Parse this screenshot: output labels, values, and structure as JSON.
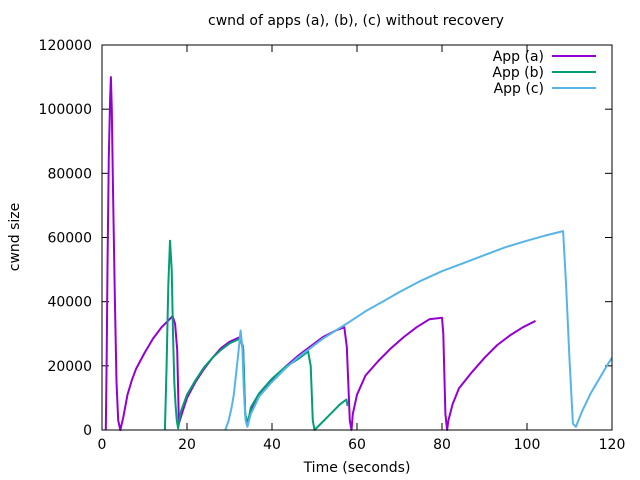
{
  "chart_data": {
    "type": "line",
    "title": "cwnd of apps (a), (b), (c) without recovery",
    "xlabel": "Time (seconds)",
    "ylabel": "cwnd size",
    "xlim": [
      0,
      120
    ],
    "ylim": [
      0,
      120000
    ],
    "xticks": [
      0,
      20,
      40,
      60,
      80,
      100,
      120
    ],
    "yticks": [
      0,
      20000,
      40000,
      60000,
      80000,
      100000,
      120000
    ],
    "grid": false,
    "legend_position": "top-right",
    "series": [
      {
        "name": "App (a)",
        "color": "#9400d3",
        "x": [
          0.9,
          1.1,
          1.3,
          1.6,
          1.9,
          2.1,
          2.3,
          2.6,
          3.0,
          3.4,
          3.8,
          4.3,
          5,
          6,
          7,
          8,
          10,
          12,
          14,
          15.5,
          16.6,
          17.2,
          17.7,
          18.1,
          19,
          20,
          22,
          24,
          26,
          28,
          30,
          32.5,
          33.2,
          33.7,
          34.2,
          35,
          37,
          40,
          43,
          46,
          49,
          52,
          55,
          57,
          57.6,
          58.3,
          58.7,
          59,
          60,
          62,
          65,
          68,
          71,
          74,
          77,
          80,
          80.3,
          80.8,
          81.2,
          81.5,
          82.5,
          84,
          87,
          90,
          93,
          96,
          99,
          102
        ],
        "y": [
          0,
          23000,
          51000,
          85000,
          103000,
          110000,
          100000,
          75000,
          42000,
          15000,
          3000,
          0,
          4000,
          11000,
          15500,
          19000,
          24000,
          28500,
          32000,
          34000,
          35500,
          33000,
          25000,
          2000,
          6000,
          10000,
          15000,
          19000,
          22500,
          25500,
          27500,
          29000,
          25000,
          5000,
          2000,
          6000,
          11000,
          15500,
          19500,
          23000,
          26000,
          29000,
          31000,
          32000,
          26000,
          3000,
          0,
          5000,
          11000,
          17000,
          21500,
          25500,
          29000,
          32000,
          34500,
          35000,
          30000,
          5000,
          0,
          3000,
          8000,
          13000,
          18000,
          22500,
          26500,
          29500,
          32000,
          34000
        ]
      },
      {
        "name": "App (b)",
        "color": "#009e73",
        "x": [
          14.8,
          15.2,
          15.6,
          16.0,
          16.4,
          16.7,
          17.0,
          17.3,
          17.6,
          17.9,
          18.2,
          18.6,
          20,
          22,
          24,
          26,
          28,
          30,
          32.5,
          33.2,
          33.7,
          34.3,
          35,
          37,
          40,
          43,
          46,
          48.5,
          49.1,
          49.6,
          50,
          53,
          56,
          57.5,
          57.8
        ],
        "y": [
          0,
          20000,
          45000,
          59000,
          50000,
          30000,
          15000,
          8000,
          3000,
          500,
          3000,
          6000,
          11000,
          15500,
          19500,
          22500,
          25000,
          27000,
          28500,
          26000,
          5000,
          2000,
          7000,
          11500,
          16000,
          19500,
          22000,
          24500,
          20000,
          3000,
          0,
          4000,
          8000,
          9500,
          7500
        ]
      },
      {
        "name": "App (c)",
        "color": "#56b4e9",
        "x": [
          29,
          29.8,
          30.5,
          31,
          31.5,
          32,
          32.6,
          33.0,
          33.4,
          33.8,
          34.2,
          35,
          37,
          40,
          43,
          46,
          49,
          52,
          55,
          58,
          62,
          66,
          70,
          75,
          80,
          85,
          90,
          95,
          100,
          104,
          108.5,
          109.2,
          110,
          110.8,
          111.5,
          113,
          115,
          117,
          119,
          120
        ],
        "y": [
          0,
          3000,
          7000,
          11000,
          17000,
          23000,
          31000,
          26000,
          12000,
          3000,
          1000,
          5000,
          10500,
          15000,
          19000,
          22500,
          25500,
          28500,
          31000,
          33500,
          37000,
          40000,
          43000,
          46500,
          49500,
          52000,
          54500,
          57000,
          59000,
          60500,
          62000,
          45000,
          22000,
          2000,
          1000,
          6000,
          11500,
          16000,
          20500,
          22500
        ]
      }
    ]
  }
}
